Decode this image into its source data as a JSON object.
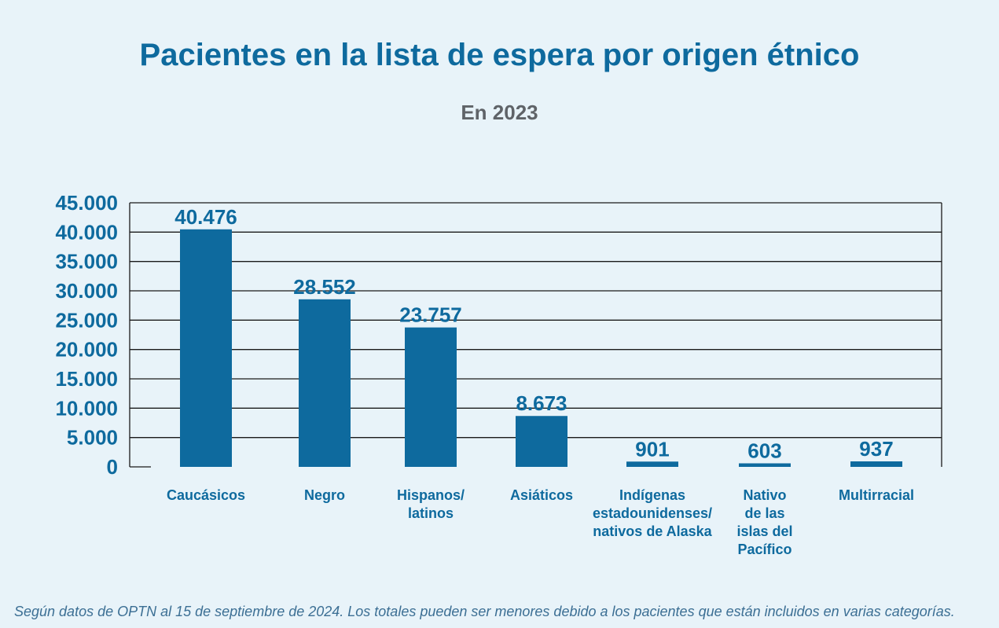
{
  "chart_data": {
    "type": "bar",
    "title": "Pacientes en la lista de espera por origen étnico",
    "subtitle": "En 2023",
    "categories": [
      "Caucásicos",
      "Negro",
      "Hispanos/ latinos",
      "Asiáticos",
      "Indígenas estadounidenses/ nativos de Alaska",
      "Nativo de las islas del Pacífico",
      "Multirracial"
    ],
    "category_lines": [
      [
        "Caucásicos"
      ],
      [
        "Negro"
      ],
      [
        "Hispanos/",
        "latinos"
      ],
      [
        "Asiáticos"
      ],
      [
        "Indígenas",
        "estadounidenses/",
        "nativos de Alaska"
      ],
      [
        "Nativo",
        "de las",
        "islas del",
        "Pacífico"
      ],
      [
        "Multirracial"
      ]
    ],
    "values": [
      40476,
      28552,
      23757,
      8673,
      901,
      603,
      937
    ],
    "value_labels": [
      "40.476",
      "28.552",
      "23.757",
      "8.673",
      "901",
      "603",
      "937"
    ],
    "ylim": [
      0,
      45000
    ],
    "yticks": [
      0,
      5000,
      10000,
      15000,
      20000,
      25000,
      30000,
      35000,
      40000,
      45000
    ],
    "ytick_labels": [
      "0",
      "5.000",
      "10.000",
      "15.000",
      "20.000",
      "25.000",
      "30.000",
      "35.000",
      "40.000",
      "45.000"
    ],
    "grid": true,
    "bar_color": "#0e6a9e"
  },
  "footnote": "Según datos de OPTN al 15 de septiembre de 2024. Los totales pueden ser menores debido a los pacientes que están incluidos en varias categorías."
}
